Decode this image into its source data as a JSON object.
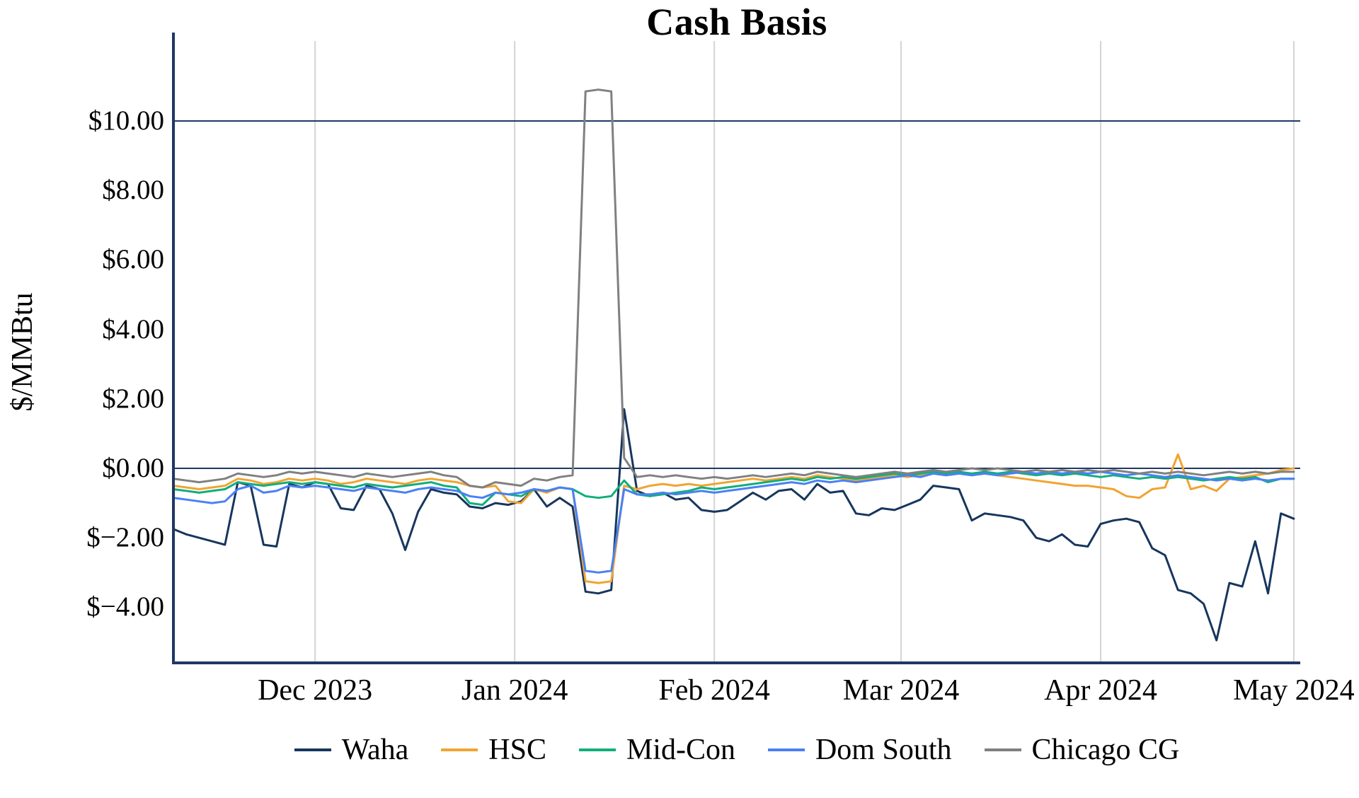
{
  "chart_data": {
    "type": "line",
    "title": "Cash Basis",
    "ylabel": "$/MMBtu",
    "xlabel": "",
    "ylim": [
      -5.6,
      12.3
    ],
    "legend_position": "bottom",
    "grid": {
      "vertical": true,
      "horizontal": false
    },
    "x_start": "2023-11-09",
    "x_end": "2024-05-02",
    "x_step_days": 2,
    "x_ticks": [
      {
        "date": "2023-12-01",
        "label": "Dec 2023"
      },
      {
        "date": "2024-01-01",
        "label": "Jan 2024"
      },
      {
        "date": "2024-02-01",
        "label": "Feb 2024"
      },
      {
        "date": "2024-03-01",
        "label": "Mar 2024"
      },
      {
        "date": "2024-04-01",
        "label": "Apr 2024"
      },
      {
        "date": "2024-05-01",
        "label": "May 2024"
      }
    ],
    "y_ticks": [
      {
        "value": 10,
        "label": "$10.00"
      },
      {
        "value": 8,
        "label": "$8.00"
      },
      {
        "value": 6,
        "label": "$6.00"
      },
      {
        "value": 4,
        "label": "$4.00"
      },
      {
        "value": 2,
        "label": "$2.00"
      },
      {
        "value": 0,
        "label": "$0.00"
      },
      {
        "value": -2,
        "label": "$−2.00"
      },
      {
        "value": -4,
        "label": "$−4.00"
      }
    ],
    "ref_lines": [
      10,
      0
    ],
    "style": {
      "axis_color": "#1f3864",
      "grid_color": "#d4d4d4",
      "background": "#ffffff",
      "text_color": "#000000",
      "line_width": 3
    },
    "series": [
      {
        "name": "Waha",
        "color": "#17365d",
        "values": [
          -1.75,
          -1.9,
          -2.0,
          -2.1,
          -2.2,
          -0.4,
          -0.5,
          -2.2,
          -2.25,
          -0.45,
          -0.55,
          -0.4,
          -0.45,
          -1.15,
          -1.2,
          -0.5,
          -0.6,
          -1.3,
          -2.35,
          -1.25,
          -0.6,
          -0.7,
          -0.75,
          -1.1,
          -1.15,
          -1.0,
          -1.05,
          -0.95,
          -0.6,
          -1.1,
          -0.85,
          -1.1,
          -3.55,
          -3.6,
          -3.5,
          1.7,
          -0.65,
          -0.8,
          -0.7,
          -0.9,
          -0.85,
          -1.2,
          -1.25,
          -1.2,
          -0.95,
          -0.7,
          -0.9,
          -0.65,
          -0.6,
          -0.9,
          -0.45,
          -0.7,
          -0.65,
          -1.3,
          -1.35,
          -1.15,
          -1.2,
          -1.05,
          -0.9,
          -0.5,
          -0.55,
          -0.6,
          -1.5,
          -1.3,
          -1.35,
          -1.4,
          -1.5,
          -2.0,
          -2.1,
          -1.9,
          -2.2,
          -2.25,
          -1.6,
          -1.5,
          -1.45,
          -1.55,
          -2.3,
          -2.5,
          -3.5,
          -3.6,
          -3.9,
          -4.95,
          -3.3,
          -3.4,
          -2.1,
          -3.6,
          -1.3,
          -1.45
        ]
      },
      {
        "name": "HSC",
        "color": "#f0a431",
        "values": [
          -0.5,
          -0.55,
          -0.6,
          -0.55,
          -0.5,
          -0.3,
          -0.35,
          -0.45,
          -0.4,
          -0.3,
          -0.35,
          -0.3,
          -0.35,
          -0.45,
          -0.4,
          -0.3,
          -0.35,
          -0.4,
          -0.45,
          -0.35,
          -0.3,
          -0.35,
          -0.4,
          -0.5,
          -0.55,
          -0.5,
          -0.95,
          -1.0,
          -0.6,
          -0.7,
          -0.55,
          -0.6,
          -3.25,
          -3.3,
          -3.25,
          -0.5,
          -0.6,
          -0.5,
          -0.45,
          -0.5,
          -0.45,
          -0.5,
          -0.45,
          -0.4,
          -0.35,
          -0.3,
          -0.35,
          -0.3,
          -0.25,
          -0.3,
          -0.2,
          -0.25,
          -0.3,
          -0.35,
          -0.3,
          -0.25,
          -0.2,
          -0.25,
          -0.2,
          -0.15,
          -0.2,
          -0.15,
          -0.2,
          -0.15,
          -0.2,
          -0.25,
          -0.3,
          -0.35,
          -0.4,
          -0.45,
          -0.5,
          -0.5,
          -0.55,
          -0.6,
          -0.8,
          -0.85,
          -0.6,
          -0.55,
          0.4,
          -0.6,
          -0.5,
          -0.65,
          -0.3,
          -0.25,
          -0.2,
          -0.15,
          -0.05,
          0.0
        ]
      },
      {
        "name": "Mid-Con",
        "color": "#0faf7c",
        "values": [
          -0.6,
          -0.65,
          -0.7,
          -0.65,
          -0.6,
          -0.4,
          -0.45,
          -0.5,
          -0.45,
          -0.4,
          -0.45,
          -0.4,
          -0.45,
          -0.5,
          -0.55,
          -0.45,
          -0.5,
          -0.55,
          -0.5,
          -0.45,
          -0.4,
          -0.5,
          -0.55,
          -1.0,
          -1.05,
          -0.7,
          -0.75,
          -0.8,
          -0.6,
          -0.65,
          -0.55,
          -0.6,
          -0.8,
          -0.85,
          -0.8,
          -0.35,
          -0.75,
          -0.8,
          -0.75,
          -0.7,
          -0.65,
          -0.55,
          -0.6,
          -0.55,
          -0.5,
          -0.45,
          -0.4,
          -0.35,
          -0.3,
          -0.35,
          -0.25,
          -0.3,
          -0.25,
          -0.3,
          -0.25,
          -0.2,
          -0.15,
          -0.2,
          -0.15,
          -0.1,
          -0.15,
          -0.1,
          -0.15,
          -0.1,
          -0.15,
          -0.1,
          -0.15,
          -0.2,
          -0.15,
          -0.2,
          -0.15,
          -0.2,
          -0.25,
          -0.2,
          -0.25,
          -0.3,
          -0.25,
          -0.3,
          -0.25,
          -0.3,
          -0.35,
          -0.3,
          -0.25,
          -0.3,
          -0.25,
          -0.4,
          -0.3,
          -0.3
        ]
      },
      {
        "name": "Dom South",
        "color": "#4a80f5",
        "values": [
          -0.85,
          -0.9,
          -0.95,
          -1.0,
          -0.95,
          -0.6,
          -0.5,
          -0.7,
          -0.65,
          -0.5,
          -0.55,
          -0.5,
          -0.55,
          -0.6,
          -0.65,
          -0.55,
          -0.6,
          -0.65,
          -0.7,
          -0.6,
          -0.55,
          -0.6,
          -0.65,
          -0.8,
          -0.85,
          -0.7,
          -0.75,
          -0.7,
          -0.6,
          -0.65,
          -0.55,
          -0.6,
          -2.95,
          -3.0,
          -2.95,
          -0.6,
          -0.75,
          -0.75,
          -0.7,
          -0.75,
          -0.7,
          -0.65,
          -0.7,
          -0.65,
          -0.6,
          -0.55,
          -0.5,
          -0.45,
          -0.4,
          -0.45,
          -0.35,
          -0.4,
          -0.35,
          -0.4,
          -0.35,
          -0.3,
          -0.25,
          -0.2,
          -0.25,
          -0.15,
          -0.2,
          -0.15,
          -0.2,
          -0.15,
          -0.2,
          -0.15,
          -0.1,
          -0.15,
          -0.1,
          -0.15,
          -0.1,
          -0.15,
          -0.1,
          -0.15,
          -0.2,
          -0.15,
          -0.2,
          -0.25,
          -0.2,
          -0.25,
          -0.3,
          -0.35,
          -0.3,
          -0.35,
          -0.3,
          -0.35,
          -0.3,
          -0.3
        ]
      },
      {
        "name": "Chicago CG",
        "color": "#808080",
        "values": [
          -0.3,
          -0.35,
          -0.4,
          -0.35,
          -0.3,
          -0.15,
          -0.2,
          -0.25,
          -0.2,
          -0.1,
          -0.15,
          -0.1,
          -0.15,
          -0.2,
          -0.25,
          -0.15,
          -0.2,
          -0.25,
          -0.2,
          -0.15,
          -0.1,
          -0.2,
          -0.25,
          -0.5,
          -0.55,
          -0.4,
          -0.45,
          -0.5,
          -0.3,
          -0.35,
          -0.25,
          -0.2,
          10.85,
          10.9,
          10.85,
          0.3,
          -0.25,
          -0.2,
          -0.25,
          -0.2,
          -0.25,
          -0.3,
          -0.25,
          -0.3,
          -0.25,
          -0.2,
          -0.25,
          -0.2,
          -0.15,
          -0.2,
          -0.1,
          -0.15,
          -0.2,
          -0.25,
          -0.2,
          -0.15,
          -0.1,
          -0.15,
          -0.1,
          -0.05,
          -0.1,
          -0.05,
          0.0,
          -0.05,
          0.0,
          -0.05,
          -0.1,
          -0.05,
          -0.1,
          -0.05,
          -0.1,
          -0.05,
          -0.1,
          -0.05,
          -0.1,
          -0.15,
          -0.1,
          -0.15,
          -0.1,
          -0.15,
          -0.2,
          -0.15,
          -0.1,
          -0.15,
          -0.1,
          -0.15,
          -0.1,
          -0.1
        ]
      }
    ]
  }
}
